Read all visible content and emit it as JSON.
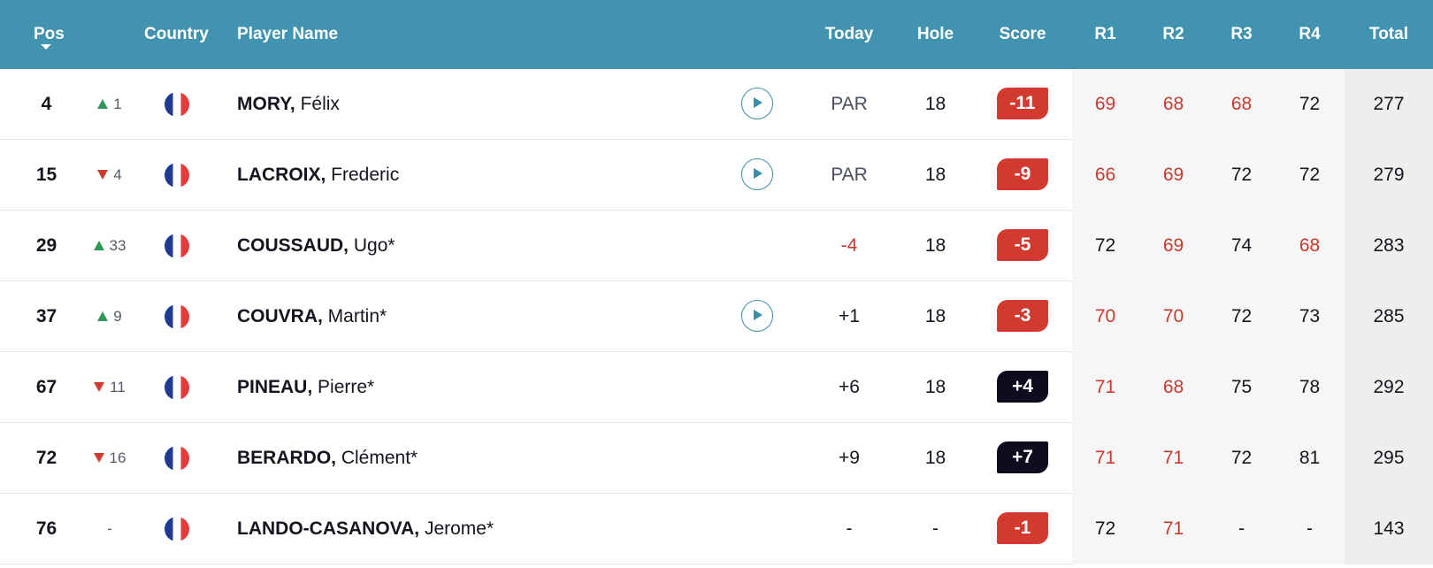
{
  "header": {
    "pos": "Pos",
    "country": "Country",
    "player_name": "Player Name",
    "today": "Today",
    "hole": "Hole",
    "score": "Score",
    "r1": "R1",
    "r2": "R2",
    "r3": "R3",
    "r4": "R4",
    "total": "Total"
  },
  "colors": {
    "header_bg": "#4293b0",
    "under_par_red": "#c8392e",
    "badge_red": "#d33a2f",
    "badge_dark": "#0e0d1f",
    "move_up_green": "#2f9a55",
    "move_down_red": "#d03a2f"
  },
  "rows": [
    {
      "pos": "4",
      "move_dir": "up",
      "move": "1",
      "country_icon": "france-flag-icon",
      "last": "MORY,",
      "first": " Félix",
      "has_video": true,
      "today": "PAR",
      "hole": "18",
      "score": "-11",
      "score_tone": "red",
      "r1": "69",
      "r2": "68",
      "r3": "68",
      "r4": "72",
      "total": "277",
      "red": [
        "r1",
        "r2",
        "r3"
      ]
    },
    {
      "pos": "15",
      "move_dir": "down",
      "move": "4",
      "country_icon": "france-flag-icon",
      "last": "LACROIX,",
      "first": " Frederic",
      "has_video": true,
      "today": "PAR",
      "hole": "18",
      "score": "-9",
      "score_tone": "red",
      "r1": "66",
      "r2": "69",
      "r3": "72",
      "r4": "72",
      "total": "279",
      "red": [
        "r1",
        "r2"
      ]
    },
    {
      "pos": "29",
      "move_dir": "up",
      "move": "33",
      "country_icon": "france-flag-icon",
      "last": "COUSSAUD,",
      "first": " Ugo*",
      "has_video": false,
      "today": "-4",
      "today_red": true,
      "hole": "18",
      "score": "-5",
      "score_tone": "red",
      "r1": "72",
      "r2": "69",
      "r3": "74",
      "r4": "68",
      "total": "283",
      "red": [
        "r2",
        "r4"
      ]
    },
    {
      "pos": "37",
      "move_dir": "up",
      "move": "9",
      "country_icon": "france-flag-icon",
      "last": "COUVRA,",
      "first": " Martin*",
      "has_video": true,
      "today": "+1",
      "hole": "18",
      "score": "-3",
      "score_tone": "red",
      "r1": "70",
      "r2": "70",
      "r3": "72",
      "r4": "73",
      "total": "285",
      "red": [
        "r1",
        "r2"
      ]
    },
    {
      "pos": "67",
      "move_dir": "down",
      "move": "11",
      "country_icon": "france-flag-icon",
      "last": "PINEAU,",
      "first": " Pierre*",
      "has_video": false,
      "today": "+6",
      "hole": "18",
      "score": "+4",
      "score_tone": "dark",
      "r1": "71",
      "r2": "68",
      "r3": "75",
      "r4": "78",
      "total": "292",
      "red": [
        "r1",
        "r2"
      ]
    },
    {
      "pos": "72",
      "move_dir": "down",
      "move": "16",
      "country_icon": "france-flag-icon",
      "last": "BERARDO,",
      "first": " Clément*",
      "has_video": false,
      "today": "+9",
      "hole": "18",
      "score": "+7",
      "score_tone": "dark",
      "r1": "71",
      "r2": "71",
      "r3": "72",
      "r4": "81",
      "total": "295",
      "red": [
        "r1",
        "r2"
      ]
    },
    {
      "pos": "76",
      "move_dir": "none",
      "move": "-",
      "country_icon": "france-flag-icon",
      "last": "LANDO-CASANOVA,",
      "first": " Jerome*",
      "has_video": false,
      "today": "-",
      "hole": "-",
      "score": "-1",
      "score_tone": "red",
      "r1": "72",
      "r2": "71",
      "r3": "-",
      "r4": "-",
      "total": "143",
      "red": [
        "r2"
      ]
    }
  ]
}
